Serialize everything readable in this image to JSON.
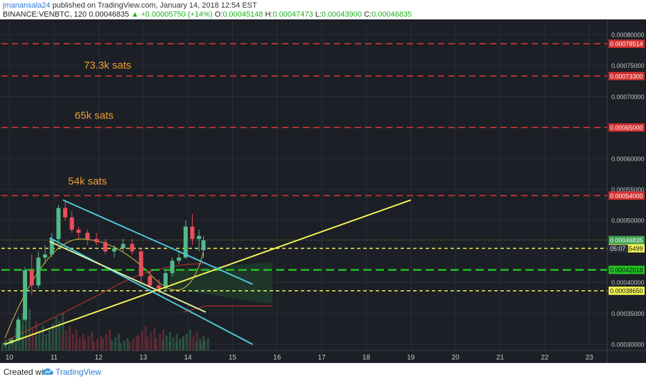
{
  "header": {
    "author": "jmanansala24",
    "published": "published on TradingView.com, January 14, 2018 12:54 EST",
    "symbol": "BINANCE:VENBTC, 120",
    "last": "0.00046835",
    "change": "+0.00005750 (+14%)",
    "o_label": "O:",
    "o": "0.00045148",
    "h_label": "H:",
    "h": "0.00047473",
    "l_label": "L:",
    "l": "0.00043900",
    "c_label": "C:",
    "c": "0.00046835"
  },
  "footer": {
    "created": "Created with",
    "brand": "TradingView"
  },
  "colors": {
    "background": "#1c1f26",
    "grid": "#2a2e39",
    "up": "#53b987",
    "down": "#eb4d5c",
    "resistance": "#e53935",
    "support": "#22c322",
    "trendline": "#f4f455",
    "channel": "#4dc7d7",
    "annotation": "#f0a030",
    "axis_text": "#c8c8c8"
  },
  "chart_data": {
    "type": "candlestick",
    "x_ticks": [
      "10",
      "11",
      "12",
      "13",
      "14",
      "15",
      "16",
      "17",
      "18",
      "19",
      "20",
      "21",
      "22",
      "23"
    ],
    "y_ticks": [
      "0.00080000",
      "0.00075000",
      "0.00070000",
      "0.00065000",
      "0.00060000",
      "0.00055000",
      "0.00050000",
      "0.00040000",
      "0.00035000",
      "0.00030000"
    ],
    "y_range": [
      0.00029,
      0.00082
    ],
    "x_range": [
      9.82,
      23.4
    ],
    "ohlc": [
      [
        9.9,
        0.0003,
        0.000305,
        0.000296,
        0.000302
      ],
      [
        10.05,
        0.000302,
        0.00031,
        0.0003,
        0.000307
      ],
      [
        10.2,
        0.000307,
        0.000345,
        0.000305,
        0.00034
      ],
      [
        10.35,
        0.00034,
        0.000425,
        0.000338,
        0.00042
      ],
      [
        10.5,
        0.00042,
        0.000445,
        0.00038,
        0.000395
      ],
      [
        10.65,
        0.000395,
        0.00045,
        0.00039,
        0.00044
      ],
      [
        10.8,
        0.00044,
        0.00046,
        0.00043,
        0.000445
      ],
      [
        10.95,
        0.000445,
        0.00048,
        0.00044,
        0.00047
      ],
      [
        11.1,
        0.00047,
        0.000525,
        0.000462,
        0.00052
      ],
      [
        11.25,
        0.00052,
        0.00053,
        0.0005,
        0.000505
      ],
      [
        11.4,
        0.000505,
        0.000515,
        0.00048,
        0.000485
      ],
      [
        11.55,
        0.000485,
        0.00049,
        0.00047,
        0.00048
      ],
      [
        11.75,
        0.00048,
        0.000485,
        0.00046,
        0.00047
      ],
      [
        11.95,
        0.00047,
        0.00048,
        0.00046,
        0.000465
      ],
      [
        12.15,
        0.000465,
        0.00047,
        0.000445,
        0.00045
      ],
      [
        12.35,
        0.00045,
        0.00046,
        0.00044,
        0.000455
      ],
      [
        12.55,
        0.000455,
        0.00047,
        0.00045,
        0.000462
      ],
      [
        12.75,
        0.000462,
        0.00047,
        0.000445,
        0.00045
      ],
      [
        12.95,
        0.00045,
        0.000455,
        0.0004,
        0.00041
      ],
      [
        13.15,
        0.00041,
        0.00042,
        0.00039,
        0.000395
      ],
      [
        13.35,
        0.000395,
        0.000405,
        0.00038,
        0.00039
      ],
      [
        13.5,
        0.00039,
        0.00042,
        0.000385,
        0.000415
      ],
      [
        13.65,
        0.000415,
        0.00044,
        0.00041,
        0.000435
      ],
      [
        13.8,
        0.000435,
        0.00045,
        0.00043,
        0.00044
      ],
      [
        13.95,
        0.00044,
        0.0005,
        0.000438,
        0.00049
      ],
      [
        14.1,
        0.00049,
        0.00051,
        0.00046,
        0.00047
      ],
      [
        14.25,
        0.00047,
        0.000485,
        0.00045,
        0.000475
      ],
      [
        14.35,
        0.000452,
        0.000475,
        0.000439,
        0.000468
      ]
    ],
    "resistance_lines": [
      {
        "price": 0.00078514,
        "label": "0.00078514"
      },
      {
        "price": 0.000733,
        "label": "0.00073300"
      },
      {
        "price": 0.00065,
        "label": "0.00065000"
      },
      {
        "price": 0.00054,
        "label": "0.00054000"
      }
    ],
    "support_lines": [
      {
        "price": 0.00042018,
        "label": "0.00042018",
        "color": "#22c322"
      },
      {
        "price": 0.00045499,
        "label": "0.00045499",
        "color": "#f4f455"
      },
      {
        "price": 0.0003865,
        "label": "0.00038650",
        "color": "#f4f455"
      }
    ],
    "current_price": {
      "price": 0.00046835,
      "label": "0.00046835",
      "countdown": "05:07",
      "partial": "0.0004"
    },
    "annotations": [
      {
        "text": "73.3k sats",
        "x": 12.2,
        "y": 0.000745
      },
      {
        "text": "65k sats",
        "x": 11.9,
        "y": 0.000664
      },
      {
        "text": "54k sats",
        "x": 11.75,
        "y": 0.000558
      }
    ],
    "trendlines": [
      {
        "name": "yellow-rising",
        "color": "#f4f455",
        "points": [
          [
            9.9,
            0.0003
          ],
          [
            19.0,
            0.000533
          ]
        ]
      },
      {
        "name": "channel-upper",
        "color": "#4dc7d7",
        "points": [
          [
            11.2,
            0.000533
          ],
          [
            15.45,
            0.000397
          ]
        ]
      },
      {
        "name": "channel-lower",
        "color": "#4dc7d7",
        "points": [
          [
            10.9,
            0.000472
          ],
          [
            15.45,
            0.0003
          ]
        ]
      },
      {
        "name": "channel-mid",
        "color": "#d7f0a0",
        "points": [
          [
            10.9,
            0.000466
          ],
          [
            14.4,
            0.000352
          ]
        ]
      }
    ]
  }
}
